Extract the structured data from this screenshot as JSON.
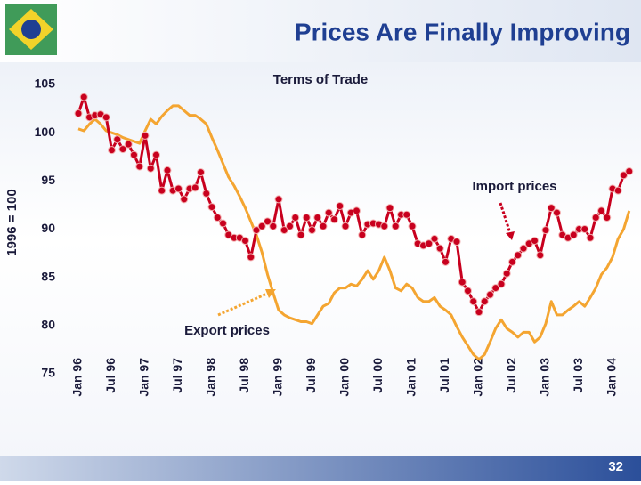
{
  "chart_data": {
    "type": "line",
    "title": "Prices Are Finally Improving",
    "subtitle": "Terms of Trade",
    "y_label": "1996 = 100",
    "categories": [
      "Jan 96",
      null,
      null,
      null,
      null,
      null,
      "Jul 96",
      null,
      null,
      null,
      null,
      null,
      "Jan 97",
      null,
      null,
      null,
      null,
      null,
      "Jul 97",
      null,
      null,
      null,
      null,
      null,
      "Jan 98",
      null,
      null,
      null,
      null,
      null,
      "Jul 98",
      null,
      null,
      null,
      null,
      null,
      "Jan 99",
      null,
      null,
      null,
      null,
      null,
      "Jul 99",
      null,
      null,
      null,
      null,
      null,
      "Jan 00",
      null,
      null,
      null,
      null,
      null,
      "Jul 00",
      null,
      null,
      null,
      null,
      null,
      "Jan 01",
      null,
      null,
      null,
      null,
      null,
      "Jul 01",
      null,
      null,
      null,
      null,
      null,
      "Jan 02",
      null,
      null,
      null,
      null,
      null,
      "Jul 02",
      null,
      null,
      null,
      null,
      null,
      "Jan 03",
      null,
      null,
      null,
      null,
      null,
      "Jul 03",
      null,
      null,
      null,
      null,
      null,
      "Jan 04",
      null,
      null,
      null
    ],
    "series": [
      {
        "name": "Export prices",
        "color": "#f4a531",
        "markers": false,
        "values": [
          100.4,
          100.2,
          100.9,
          101.4,
          100.9,
          100.2,
          100,
          99.8,
          99.5,
          99.3,
          99.1,
          98.9,
          100.2,
          101.4,
          100.9,
          101.7,
          102.3,
          102.8,
          102.8,
          102.3,
          101.8,
          101.8,
          101.4,
          100.9,
          99.5,
          98.2,
          96.8,
          95.4,
          94.5,
          93.4,
          92.2,
          90.8,
          89.4,
          87.6,
          85.3,
          83.4,
          81.6,
          81.1,
          80.8,
          80.6,
          80.4,
          80.4,
          80.2,
          81.1,
          82.0,
          82.3,
          83.4,
          83.9,
          83.9,
          84.3,
          84.1,
          84.8,
          85.7,
          84.8,
          85.7,
          87.1,
          85.7,
          83.9,
          83.6,
          84.3,
          83.9,
          82.9,
          82.5,
          82.5,
          82.9,
          82.0,
          81.6,
          81.1,
          79.9,
          78.8,
          77.9,
          77.0,
          76.5,
          77.0,
          78.3,
          79.7,
          80.6,
          79.7,
          79.3,
          78.8,
          79.3,
          79.3,
          78.3,
          78.8,
          80.2,
          82.5,
          81.1,
          81.1,
          81.6,
          82.0,
          82.5,
          82.0,
          82.9,
          83.9,
          85.3,
          86.0,
          87.1,
          89.0,
          90.0,
          91.9
        ]
      },
      {
        "name": "Import prices",
        "color": "#c8001e",
        "markers": true,
        "values": [
          102,
          103.7,
          101.6,
          101.8,
          101.9,
          101.6,
          98.2,
          99.3,
          98.3,
          98.8,
          97.7,
          96.5,
          99.7,
          96.3,
          97.7,
          94.0,
          96.1,
          94.0,
          94.2,
          93.1,
          94.2,
          94.3,
          95.9,
          93.7,
          92.3,
          91.2,
          90.6,
          89.4,
          89.1,
          89.1,
          88.8,
          87.1,
          89.9,
          90.3,
          90.8,
          90.3,
          93.1,
          89.9,
          90.3,
          91.2,
          89.4,
          91.2,
          89.9,
          91.2,
          90.3,
          91.7,
          91.0,
          92.4,
          90.3,
          91.7,
          91.9,
          89.4,
          90.5,
          90.6,
          90.5,
          90.3,
          92.2,
          90.3,
          91.5,
          91.5,
          90.3,
          88.5,
          88.3,
          88.5,
          89.0,
          88.0,
          86.6,
          89.0,
          88.7,
          84.5,
          83.6,
          82.5,
          81.4,
          82.5,
          83.2,
          83.9,
          84.3,
          85.4,
          86.6,
          87.3,
          88.0,
          88.5,
          88.8,
          87.3,
          89.9,
          92.2,
          91.7,
          89.4,
          89.1,
          89.4,
          90.0,
          90.0,
          89.1,
          91.2,
          91.9,
          91.2,
          94.2,
          94.0,
          95.6,
          96.0
        ]
      }
    ],
    "ylim": [
      75,
      105
    ],
    "yticks": [
      75,
      80,
      85,
      90,
      95,
      100,
      105
    ],
    "grid": false
  },
  "slide": {
    "number": 32
  }
}
